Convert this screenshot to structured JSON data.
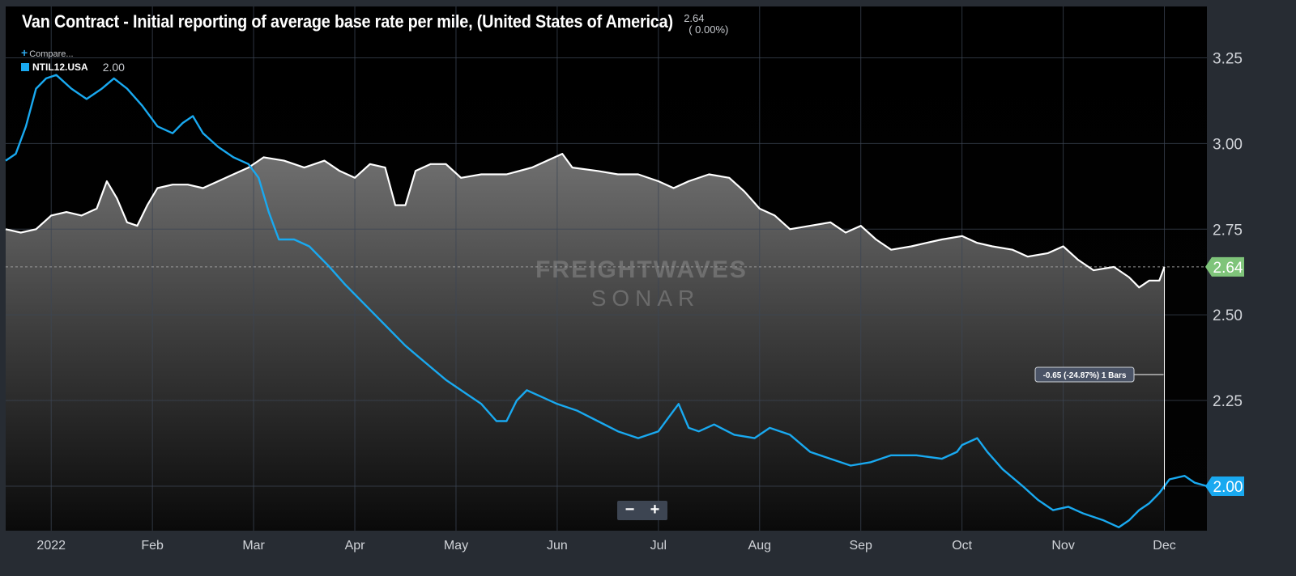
{
  "header": {
    "title": "Van Contract - Initial reporting of average base rate per mile, (United States of America)",
    "current_value": "2.64",
    "change": "( 0.00%)"
  },
  "compare_label": "Compare...",
  "legend": {
    "name": "NTIL12.USA",
    "value": "2.00"
  },
  "zoom": {
    "minus": "−",
    "plus": "+"
  },
  "watermark": {
    "line1": "FREIGHTWAVES",
    "line2": "SONAR"
  },
  "colors": {
    "primary_line": "#ffffff",
    "compare_line": "#19a9f0",
    "primary_badge": "#7fc47a",
    "compare_badge": "#19a9f0"
  },
  "chart_data": {
    "type": "line",
    "title": "Van Contract - Initial reporting of average base rate per mile, (United States of America)",
    "x_unit": "months since 2022-01-01 (0 = Jan 1, 11 = Dec 1)",
    "xlim": [
      -0.45,
      11.42
    ],
    "ylim": [
      1.87,
      3.4
    ],
    "grid": true,
    "x_ticks": [
      {
        "pos": 0,
        "label": "2022"
      },
      {
        "pos": 1,
        "label": "Feb"
      },
      {
        "pos": 2,
        "label": "Mar"
      },
      {
        "pos": 3,
        "label": "Apr"
      },
      {
        "pos": 4,
        "label": "May"
      },
      {
        "pos": 5,
        "label": "Jun"
      },
      {
        "pos": 6,
        "label": "Jul"
      },
      {
        "pos": 7,
        "label": "Aug"
      },
      {
        "pos": 8,
        "label": "Sep"
      },
      {
        "pos": 9,
        "label": "Oct"
      },
      {
        "pos": 10,
        "label": "Nov"
      },
      {
        "pos": 11,
        "label": "Dec"
      }
    ],
    "y_ticks": [
      "2.00",
      "2.25",
      "2.50",
      "2.75",
      "3.00",
      "3.25"
    ],
    "y_tick_values": [
      2.0,
      2.25,
      2.5,
      2.75,
      3.0,
      3.25
    ],
    "series": [
      {
        "name": "Van Contract - Initial reporting of average base rate per mile",
        "last_value": "2.64",
        "points": [
          [
            -0.45,
            2.75
          ],
          [
            -0.3,
            2.74
          ],
          [
            -0.15,
            2.75
          ],
          [
            0,
            2.79
          ],
          [
            0.15,
            2.8
          ],
          [
            0.3,
            2.79
          ],
          [
            0.45,
            2.81
          ],
          [
            0.55,
            2.89
          ],
          [
            0.65,
            2.84
          ],
          [
            0.75,
            2.77
          ],
          [
            0.85,
            2.76
          ],
          [
            0.95,
            2.82
          ],
          [
            1.05,
            2.87
          ],
          [
            1.2,
            2.88
          ],
          [
            1.35,
            2.88
          ],
          [
            1.5,
            2.87
          ],
          [
            1.65,
            2.89
          ],
          [
            1.8,
            2.91
          ],
          [
            1.95,
            2.93
          ],
          [
            2.1,
            2.96
          ],
          [
            2.3,
            2.95
          ],
          [
            2.5,
            2.93
          ],
          [
            2.7,
            2.95
          ],
          [
            2.85,
            2.92
          ],
          [
            3.0,
            2.9
          ],
          [
            3.15,
            2.94
          ],
          [
            3.3,
            2.93
          ],
          [
            3.4,
            2.82
          ],
          [
            3.5,
            2.82
          ],
          [
            3.6,
            2.92
          ],
          [
            3.75,
            2.94
          ],
          [
            3.9,
            2.94
          ],
          [
            4.05,
            2.9
          ],
          [
            4.25,
            2.91
          ],
          [
            4.5,
            2.91
          ],
          [
            4.75,
            2.93
          ],
          [
            4.9,
            2.95
          ],
          [
            5.05,
            2.97
          ],
          [
            5.15,
            2.93
          ],
          [
            5.4,
            2.92
          ],
          [
            5.6,
            2.91
          ],
          [
            5.8,
            2.91
          ],
          [
            6.0,
            2.89
          ],
          [
            6.15,
            2.87
          ],
          [
            6.3,
            2.89
          ],
          [
            6.5,
            2.91
          ],
          [
            6.7,
            2.9
          ],
          [
            6.85,
            2.86
          ],
          [
            7.0,
            2.81
          ],
          [
            7.15,
            2.79
          ],
          [
            7.3,
            2.75
          ],
          [
            7.5,
            2.76
          ],
          [
            7.7,
            2.77
          ],
          [
            7.85,
            2.74
          ],
          [
            8.0,
            2.76
          ],
          [
            8.15,
            2.72
          ],
          [
            8.3,
            2.69
          ],
          [
            8.5,
            2.7
          ],
          [
            8.65,
            2.71
          ],
          [
            8.8,
            2.72
          ],
          [
            9.0,
            2.73
          ],
          [
            9.15,
            2.71
          ],
          [
            9.3,
            2.7
          ],
          [
            9.5,
            2.69
          ],
          [
            9.65,
            2.67
          ],
          [
            9.85,
            2.68
          ],
          [
            10.0,
            2.7
          ],
          [
            10.15,
            2.66
          ],
          [
            10.3,
            2.63
          ],
          [
            10.5,
            2.64
          ],
          [
            10.65,
            2.61
          ],
          [
            10.75,
            2.58
          ],
          [
            10.85,
            2.6
          ],
          [
            10.95,
            2.6
          ],
          [
            11.0,
            2.64
          ]
        ]
      },
      {
        "name": "NTIL12.USA",
        "last_value": "2.00",
        "points": [
          [
            -0.45,
            2.95
          ],
          [
            -0.35,
            2.97
          ],
          [
            -0.25,
            3.05
          ],
          [
            -0.15,
            3.16
          ],
          [
            -0.05,
            3.19
          ],
          [
            0.05,
            3.2
          ],
          [
            0.2,
            3.16
          ],
          [
            0.35,
            3.13
          ],
          [
            0.5,
            3.16
          ],
          [
            0.62,
            3.19
          ],
          [
            0.75,
            3.16
          ],
          [
            0.9,
            3.11
          ],
          [
            1.05,
            3.05
          ],
          [
            1.2,
            3.03
          ],
          [
            1.3,
            3.06
          ],
          [
            1.4,
            3.08
          ],
          [
            1.5,
            3.03
          ],
          [
            1.65,
            2.99
          ],
          [
            1.8,
            2.96
          ],
          [
            1.95,
            2.94
          ],
          [
            2.05,
            2.9
          ],
          [
            2.15,
            2.8
          ],
          [
            2.25,
            2.72
          ],
          [
            2.4,
            2.72
          ],
          [
            2.55,
            2.7
          ],
          [
            2.75,
            2.64
          ],
          [
            2.9,
            2.59
          ],
          [
            3.1,
            2.53
          ],
          [
            3.3,
            2.47
          ],
          [
            3.5,
            2.41
          ],
          [
            3.7,
            2.36
          ],
          [
            3.9,
            2.31
          ],
          [
            4.1,
            2.27
          ],
          [
            4.25,
            2.24
          ],
          [
            4.4,
            2.19
          ],
          [
            4.5,
            2.19
          ],
          [
            4.6,
            2.25
          ],
          [
            4.7,
            2.28
          ],
          [
            4.85,
            2.26
          ],
          [
            5.0,
            2.24
          ],
          [
            5.2,
            2.22
          ],
          [
            5.4,
            2.19
          ],
          [
            5.6,
            2.16
          ],
          [
            5.8,
            2.14
          ],
          [
            6.0,
            2.16
          ],
          [
            6.1,
            2.2
          ],
          [
            6.2,
            2.24
          ],
          [
            6.3,
            2.17
          ],
          [
            6.4,
            2.16
          ],
          [
            6.55,
            2.18
          ],
          [
            6.75,
            2.15
          ],
          [
            6.95,
            2.14
          ],
          [
            7.1,
            2.17
          ],
          [
            7.3,
            2.15
          ],
          [
            7.5,
            2.1
          ],
          [
            7.7,
            2.08
          ],
          [
            7.9,
            2.06
          ],
          [
            8.1,
            2.07
          ],
          [
            8.3,
            2.09
          ],
          [
            8.55,
            2.09
          ],
          [
            8.8,
            2.08
          ],
          [
            8.95,
            2.1
          ],
          [
            9.0,
            2.12
          ],
          [
            9.15,
            2.14
          ],
          [
            9.25,
            2.1
          ],
          [
            9.4,
            2.05
          ],
          [
            9.6,
            2.0
          ],
          [
            9.75,
            1.96
          ],
          [
            9.9,
            1.93
          ],
          [
            10.05,
            1.94
          ],
          [
            10.2,
            1.92
          ],
          [
            10.4,
            1.9
          ],
          [
            10.55,
            1.88
          ],
          [
            10.65,
            1.9
          ],
          [
            10.75,
            1.93
          ],
          [
            10.85,
            1.95
          ],
          [
            10.95,
            1.98
          ],
          [
            11.05,
            2.02
          ],
          [
            11.2,
            2.03
          ],
          [
            11.3,
            2.01
          ],
          [
            11.42,
            2.0
          ]
        ]
      }
    ],
    "reference_line": {
      "value": 2.64,
      "label": "2.64"
    },
    "annotation": {
      "label": "-0.65 (-24.87%) 1 Bars",
      "x": 11.0,
      "from": 2.64,
      "to": 1.99
    }
  }
}
